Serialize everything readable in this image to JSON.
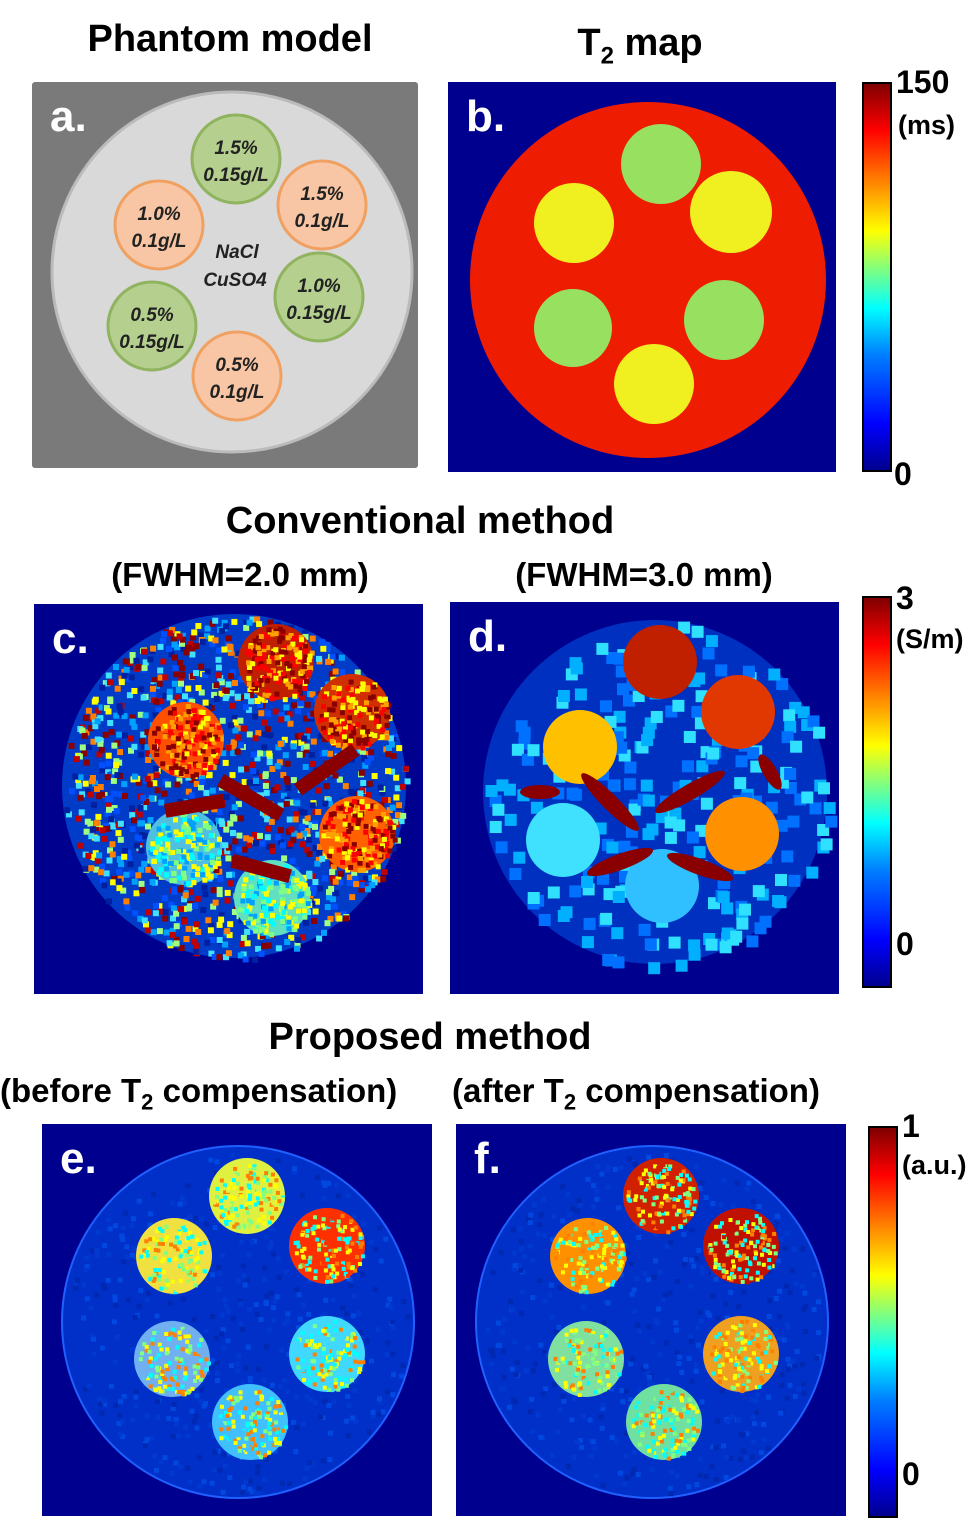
{
  "row1": {
    "title_a": "Phantom model",
    "title_b_main": "T",
    "title_b_sub": "2",
    "title_b_rest": " map"
  },
  "panel_a": {
    "label": "a.",
    "center_label_1": "NaCl",
    "center_label_2": "CuSO4",
    "vials": [
      {
        "line1": "1.5%",
        "line2": "0.15g/L",
        "color": "#b5cf8e"
      },
      {
        "line1": "1.5%",
        "line2": "0.1g/L",
        "color": "#f8c6a4"
      },
      {
        "line1": "1.0%",
        "line2": "0.15g/L",
        "color": "#b5cf8e"
      },
      {
        "line1": "0.5%",
        "line2": "0.1g/L",
        "color": "#f8c6a4"
      },
      {
        "line1": "0.5%",
        "line2": "0.15g/L",
        "color": "#b5cf8e"
      },
      {
        "line1": "1.0%",
        "line2": "0.1g/L",
        "color": "#f8c6a4"
      }
    ]
  },
  "panel_b": {
    "label": "b."
  },
  "colorbar_1": {
    "max": "150",
    "unit": "(ms)",
    "min": "0"
  },
  "row2": {
    "title": "Conventional method",
    "sub_c": "(FWHM=2.0 mm)",
    "sub_d": "(FWHM=3.0 mm)"
  },
  "panel_c": {
    "label": "c."
  },
  "panel_d": {
    "label": "d."
  },
  "colorbar_2": {
    "max": "3",
    "unit": "(S/m)",
    "min": "0"
  },
  "row3": {
    "title": "Proposed method",
    "sub_e_pre": "(before T",
    "sub_e_sub": "2",
    "sub_e_post": " compensation)",
    "sub_f_pre": "(after T",
    "sub_f_sub": "2",
    "sub_f_post": " compensation)"
  },
  "panel_e": {
    "label": "e."
  },
  "panel_f": {
    "label": "f."
  },
  "colorbar_3": {
    "max": "1",
    "unit": "(a.u.)",
    "min": "0"
  },
  "colors": {
    "background_blue": "#00008f",
    "phantom_red": "#ee1c00",
    "t2_yellow": "#f0f020",
    "t2_green": "#98e060",
    "dark_red": "#8a0000"
  }
}
